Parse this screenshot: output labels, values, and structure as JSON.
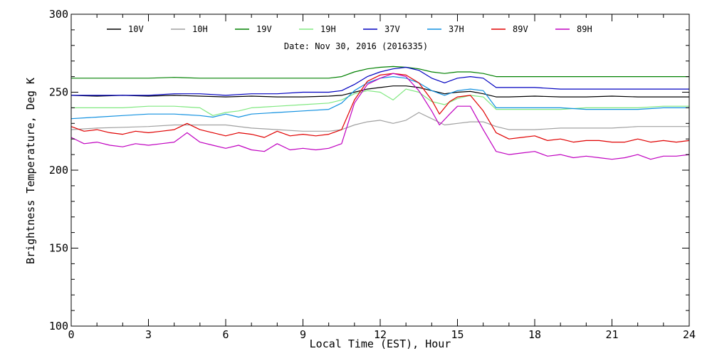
{
  "chart_data": {
    "type": "line",
    "title": "",
    "annotation": "Date: Nov 30, 2016 (2016335)",
    "xlabel": "Local Time (EST), Hour",
    "ylabel": "Brightness Temperature, Deg K",
    "xlim": [
      0,
      24
    ],
    "ylim": [
      100,
      300
    ],
    "xticks": [
      0,
      3,
      6,
      9,
      12,
      15,
      18,
      21,
      24
    ],
    "yticks": [
      100,
      150,
      200,
      250,
      300
    ],
    "grid": false,
    "legend_position": "top",
    "series": [
      {
        "name": "10V",
        "color": "#000000",
        "x": [
          0,
          1,
          2,
          3,
          4,
          5,
          6,
          7,
          8,
          9,
          10,
          10.5,
          11,
          11.5,
          12,
          12.5,
          13,
          13.5,
          14,
          14.5,
          15,
          15.5,
          16,
          16.5,
          17,
          18,
          19,
          20,
          21,
          22,
          23,
          24
        ],
        "y": [
          248,
          247.5,
          248,
          247.5,
          248,
          247.5,
          247,
          247.5,
          247,
          247,
          247.5,
          248,
          250,
          252,
          253,
          254,
          254,
          253,
          251,
          249,
          250,
          250.5,
          249,
          247,
          247,
          247.5,
          247,
          247,
          247.5,
          247,
          247,
          247
        ]
      },
      {
        "name": "10H",
        "color": "#a0a0a0",
        "x": [
          0,
          1,
          2,
          3,
          4,
          5,
          6,
          7,
          8,
          9,
          10,
          10.5,
          11,
          11.5,
          12,
          12.5,
          13,
          13.5,
          14,
          14.5,
          15,
          15.5,
          16,
          16.5,
          17,
          18,
          19,
          20,
          21,
          22,
          23,
          24
        ],
        "y": [
          226,
          227,
          227.5,
          228,
          229,
          229,
          229,
          227,
          226,
          225,
          225,
          226,
          229,
          231,
          232,
          230,
          232,
          237,
          233,
          229,
          230,
          231,
          231,
          228,
          226,
          226,
          227,
          227,
          227,
          228,
          228,
          228
        ]
      },
      {
        "name": "19V",
        "color": "#008000",
        "x": [
          0,
          1,
          2,
          3,
          4,
          5,
          6,
          7,
          8,
          9,
          10,
          10.5,
          11,
          11.5,
          12,
          12.5,
          13,
          13.5,
          14,
          14.5,
          15,
          15.5,
          16,
          16.5,
          17,
          18,
          19,
          20,
          21,
          22,
          23,
          24
        ],
        "y": [
          259,
          259,
          259,
          259,
          259.5,
          259,
          259,
          259,
          259,
          259,
          259,
          260,
          263,
          265,
          266,
          266.5,
          266,
          265,
          263,
          262,
          263,
          263,
          262,
          260,
          260,
          260,
          260,
          260,
          260,
          260,
          260,
          260
        ]
      },
      {
        "name": "19H",
        "color": "#80e880",
        "x": [
          0,
          1,
          2,
          3,
          4,
          5,
          5.5,
          6,
          6.5,
          7,
          8,
          9,
          10,
          10.5,
          11,
          11.5,
          12,
          12.5,
          13,
          13.5,
          14,
          14.5,
          15,
          15.5,
          16,
          16.5,
          17,
          18,
          19,
          20,
          21,
          22,
          23,
          24
        ],
        "y": [
          240,
          240,
          240,
          241,
          241,
          240,
          235,
          237,
          238,
          240,
          241,
          242,
          243,
          245,
          249,
          251,
          250,
          245,
          252,
          250,
          244,
          242,
          246,
          248,
          247,
          239,
          239,
          239,
          239,
          240,
          240,
          240,
          241,
          241
        ]
      },
      {
        "name": "37V",
        "color": "#0000c0",
        "x": [
          0,
          1,
          2,
          3,
          4,
          5,
          6,
          7,
          8,
          9,
          10,
          10.5,
          11,
          11.5,
          12,
          12.5,
          13,
          13.5,
          14,
          14.5,
          15,
          15.5,
          16,
          16.5,
          17,
          18,
          19,
          20,
          21,
          22,
          23,
          24
        ],
        "y": [
          248,
          248,
          248,
          248,
          249,
          249,
          248,
          249,
          249,
          250,
          250,
          251,
          255,
          260,
          263,
          265,
          266,
          264,
          259,
          256,
          259,
          260,
          259,
          253,
          253,
          253,
          252,
          252,
          252,
          252,
          252,
          252
        ]
      },
      {
        "name": "37H",
        "color": "#1090e0",
        "x": [
          0,
          1,
          2,
          3,
          4,
          5,
          5.5,
          6,
          6.5,
          7,
          8,
          9,
          10,
          10.5,
          11,
          11.5,
          12,
          12.5,
          13,
          13.5,
          14,
          14.5,
          15,
          15.5,
          16,
          16.5,
          17,
          18,
          19,
          20,
          21,
          22,
          23,
          24
        ],
        "y": [
          233,
          234,
          235,
          236,
          236,
          235,
          234,
          236,
          234,
          236,
          237,
          238,
          239,
          243,
          251,
          256,
          259,
          260,
          259,
          256,
          251,
          248,
          251,
          252,
          251,
          240,
          240,
          240,
          240,
          239,
          239,
          239,
          240,
          240
        ]
      },
      {
        "name": "89V",
        "color": "#e00000",
        "x": [
          0,
          0.5,
          1,
          1.5,
          2,
          2.5,
          3,
          3.5,
          4,
          4.5,
          5,
          5.5,
          6,
          6.5,
          7,
          7.5,
          8,
          8.5,
          9,
          9.5,
          10,
          10.5,
          11,
          11.5,
          12,
          12.5,
          13,
          13.5,
          14,
          14.3,
          14.7,
          15,
          15.5,
          16,
          16.5,
          17,
          17.5,
          18,
          18.5,
          19,
          19.5,
          20,
          20.5,
          21,
          21.5,
          22,
          22.5,
          23,
          23.5,
          24
        ],
        "y": [
          228,
          225,
          226,
          224,
          223,
          225,
          224,
          225,
          226,
          230,
          226,
          224,
          222,
          224,
          223,
          221,
          225,
          222,
          223,
          222,
          223,
          226,
          245,
          257,
          261,
          262,
          261,
          256,
          245,
          236,
          244,
          247,
          248,
          238,
          224,
          220,
          221,
          222,
          219,
          220,
          218,
          219,
          219,
          218,
          218,
          220,
          218,
          219,
          218,
          219
        ]
      },
      {
        "name": "89H",
        "color": "#c000c0",
        "x": [
          0,
          0.5,
          1,
          1.5,
          2,
          2.5,
          3,
          3.5,
          4,
          4.5,
          5,
          5.5,
          6,
          6.5,
          7,
          7.5,
          8,
          8.5,
          9,
          9.5,
          10,
          10.5,
          11,
          11.5,
          12,
          12.5,
          13,
          13.5,
          14,
          14.3,
          14.7,
          15,
          15.5,
          16,
          16.5,
          17,
          17.5,
          18,
          18.5,
          19,
          19.5,
          20,
          20.5,
          21,
          21.5,
          22,
          22.5,
          23,
          23.5,
          24
        ],
        "y": [
          221,
          217,
          218,
          216,
          215,
          217,
          216,
          217,
          218,
          224,
          218,
          216,
          214,
          216,
          213,
          212,
          217,
          213,
          214,
          213,
          214,
          217,
          243,
          255,
          259,
          262,
          260,
          251,
          238,
          229,
          236,
          241,
          241,
          226,
          212,
          210,
          211,
          212,
          209,
          210,
          208,
          209,
          208,
          207,
          208,
          210,
          207,
          209,
          209,
          210
        ]
      }
    ]
  }
}
